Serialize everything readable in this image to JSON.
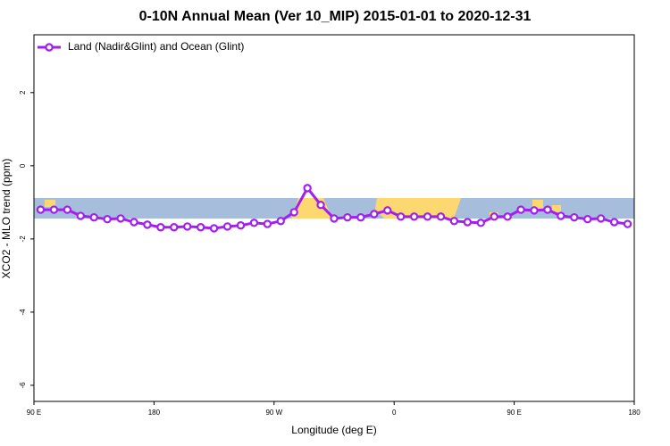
{
  "chart_data": {
    "type": "line",
    "title": "0-10N Annual Mean (Ver 10_MIP)   2015-01-01 to 2020-12-31",
    "x_label": "Longitude (deg E)",
    "y_label": "XCO2 - MLO trend (ppm)",
    "xlim": [
      90,
      540
    ],
    "ylim": [
      -6.44,
      3.58
    ],
    "xticks": [
      {
        "value": 90,
        "label": "90 E"
      },
      {
        "value": 180,
        "label": "180"
      },
      {
        "value": 270,
        "label": "90 W"
      },
      {
        "value": 360,
        "label": "0"
      },
      {
        "value": 450,
        "label": "90 E"
      },
      {
        "value": 540,
        "label": "180"
      }
    ],
    "yticks": [
      2,
      0,
      -2,
      -4,
      -6
    ],
    "legend": "top-left",
    "x": [
      95,
      105,
      115,
      125,
      135,
      145,
      155,
      165,
      175,
      185,
      195,
      205,
      215,
      225,
      235,
      245,
      255,
      265,
      275,
      285,
      295,
      305,
      315,
      325,
      335,
      345,
      355,
      365,
      375,
      385,
      395,
      405,
      415,
      425,
      435,
      445,
      455,
      465,
      475,
      485,
      495,
      505,
      515,
      525,
      535
    ],
    "series": [
      {
        "name": "Land (Nadir&Glint) and Ocean (Glint)",
        "color": "#a020f0",
        "values": [
          -1.2,
          -1.2,
          -1.2,
          -1.37,
          -1.41,
          -1.46,
          -1.44,
          -1.54,
          -1.61,
          -1.68,
          -1.68,
          -1.66,
          -1.68,
          -1.71,
          -1.66,
          -1.63,
          -1.56,
          -1.59,
          -1.51,
          -1.27,
          -0.61,
          -1.07,
          -1.44,
          -1.41,
          -1.41,
          -1.32,
          -1.22,
          -1.39,
          -1.39,
          -1.39,
          -1.39,
          -1.51,
          -1.54,
          -1.56,
          -1.39,
          -1.39,
          -1.2,
          -1.22,
          -1.2,
          -1.37,
          -1.41,
          -1.46,
          -1.44,
          -1.54,
          -1.59
        ]
      }
    ]
  }
}
